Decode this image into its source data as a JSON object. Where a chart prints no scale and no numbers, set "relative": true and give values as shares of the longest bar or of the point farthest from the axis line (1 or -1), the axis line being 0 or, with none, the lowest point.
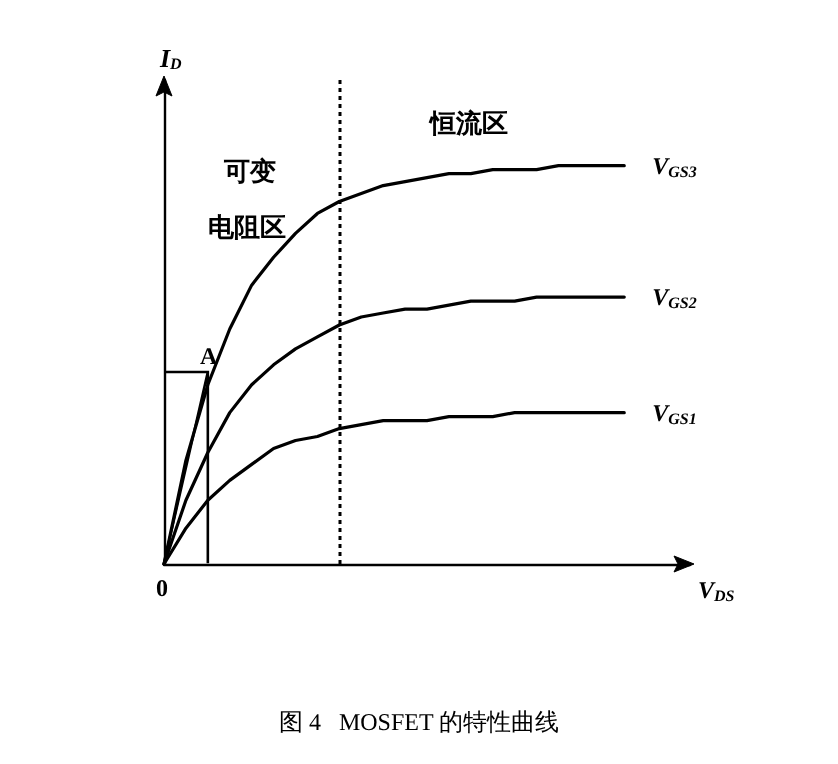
{
  "chart_data": {
    "type": "line",
    "relative": true,
    "title": "图 4   MOSFET 的特性曲线",
    "xlabel": "V$_{DS}$",
    "ylabel": "I$_{D}$",
    "categories": [
      null,
      null,
      null,
      null,
      null,
      null,
      null,
      null,
      null,
      null,
      null,
      null,
      null,
      null,
      null,
      null,
      null,
      null,
      null,
      null,
      null,
      null,
      null,
      null,
      null
    ],
    "series": [
      {
        "name": "V$_{GS3}$",
        "color": "#000000",
        "values": [
          0,
          0.26,
          0.45,
          0.59,
          0.7,
          0.77,
          0.83,
          0.88,
          0.91,
          0.93,
          0.95,
          0.96,
          0.97,
          0.98,
          0.98,
          0.99,
          0.99,
          0.99,
          1,
          1,
          1,
          1,
          null,
          null,
          null
        ]
      },
      {
        "name": "V$_{GS2}$",
        "color": "#000000",
        "values": [
          0,
          0.16,
          0.28,
          0.38,
          0.45,
          0.5,
          0.54,
          0.57,
          0.6,
          0.62,
          0.63,
          0.64,
          0.64,
          0.65,
          0.66,
          0.66,
          0.66,
          0.67,
          0.67,
          0.67,
          0.67,
          0.67,
          null,
          null,
          null
        ]
      },
      {
        "name": "V$_{GS1}$",
        "color": "#000000",
        "values": [
          0,
          0.09,
          0.16,
          0.21,
          0.25,
          0.29,
          0.31,
          0.32,
          0.34,
          0.35,
          0.36,
          0.36,
          0.36,
          0.37,
          0.37,
          0.37,
          0.38,
          0.38,
          0.38,
          0.38,
          0.38,
          0.38,
          null,
          null,
          null
        ]
      }
    ],
    "annotations": [
      "可变",
      "电阻区",
      "恒流区",
      "A",
      "0"
    ],
    "marker": "none",
    "line_style": "solid",
    "legend": false,
    "grid": false
  }
}
